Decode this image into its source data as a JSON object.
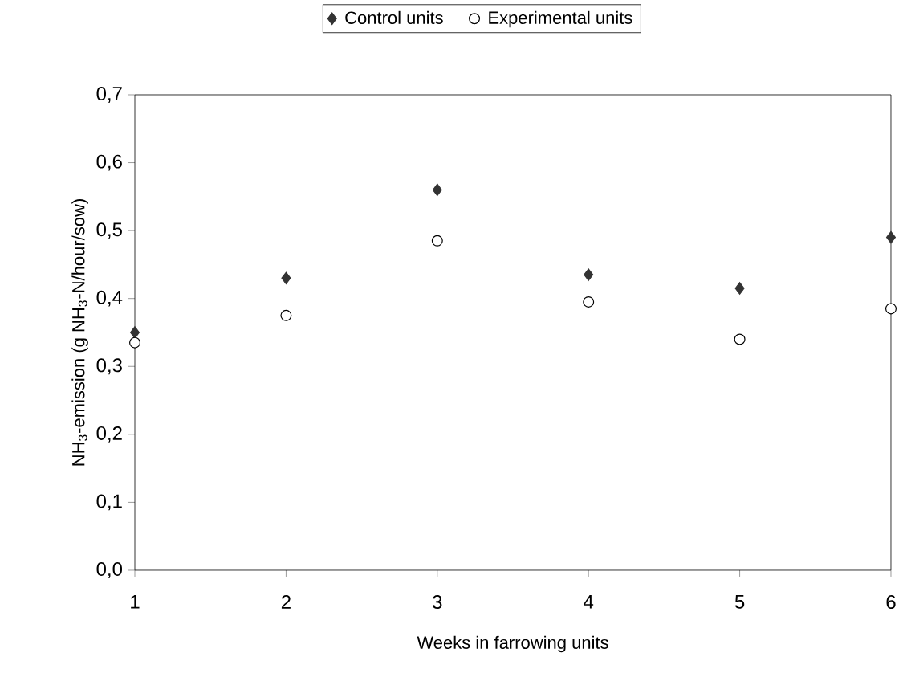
{
  "chart_data": {
    "type": "scatter",
    "xlabel": "Weeks in farrowing units",
    "ylabel": "NH$_{3}$-emission (g NH$_{3}$-N/hour/sow)",
    "x": [
      1,
      2,
      3,
      4,
      5,
      6
    ],
    "series": [
      {
        "name": "Control units",
        "color": "#333333",
        "marker": "diamond",
        "values": [
          0.35,
          0.43,
          0.56,
          0.435,
          0.415,
          0.49
        ]
      },
      {
        "name": "Experimental units",
        "color": "#000000",
        "marker": "circle",
        "values": [
          0.335,
          0.375,
          0.485,
          0.395,
          0.34,
          0.385
        ]
      }
    ],
    "xlim": [
      1,
      6
    ],
    "xticks": [
      1,
      2,
      3,
      4,
      5,
      6
    ],
    "ylim": [
      0,
      0.7
    ],
    "yticks": [
      {
        "value": 0,
        "label": "0,0"
      },
      {
        "value": 0.1,
        "label": "0,1"
      },
      {
        "value": 0.2,
        "label": "0,2"
      },
      {
        "value": 0.3,
        "label": "0,3"
      },
      {
        "value": 0.4,
        "label": "0,4"
      },
      {
        "value": 0.5,
        "label": "0,5"
      },
      {
        "value": 0.6,
        "label": "0,6"
      },
      {
        "value": 0.7,
        "label": "0,7"
      }
    ],
    "grid": false,
    "legend": "top"
  }
}
